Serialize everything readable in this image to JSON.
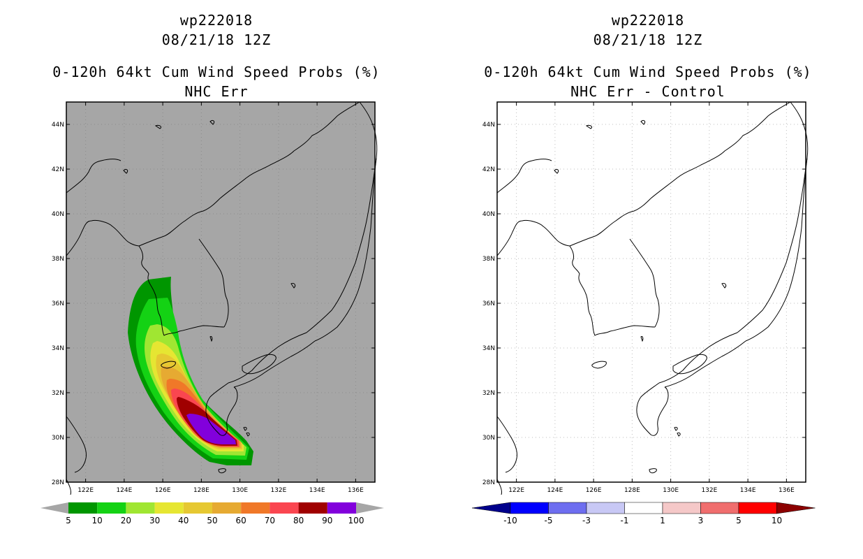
{
  "left_panel": {
    "storm_id": "wp222018",
    "datetime": "08/21/18 12Z",
    "product": "0-120h 64kt Cum Wind Speed Probs (%)",
    "subtitle": "NHC Err",
    "background_color": "#a6a6a6",
    "legend": {
      "labels": [
        "5",
        "10",
        "20",
        "30",
        "40",
        "50",
        "60",
        "70",
        "80",
        "90",
        "100"
      ],
      "colors": [
        "#009600",
        "#14d214",
        "#a0e632",
        "#e6e632",
        "#e6c832",
        "#e6aa32",
        "#f07828",
        "#fa4650",
        "#a00000",
        "#8200dc"
      ]
    }
  },
  "right_panel": {
    "storm_id": "wp222018",
    "datetime": "08/21/18 12Z",
    "product": "0-120h 64kt Cum Wind Speed Probs (%)",
    "subtitle": "NHC Err - Control",
    "background_color": "#ffffff",
    "legend": {
      "labels": [
        "-10",
        "-5",
        "-3",
        "-1",
        "1",
        "3",
        "5",
        "10"
      ],
      "colors": [
        "#00008c",
        "#0000ff",
        "#6e6ef0",
        "#c8c8f5",
        "#ffffff",
        "#f5c8c8",
        "#f06e6e",
        "#ff0000",
        "#8c0000"
      ]
    }
  },
  "axes": {
    "lat_labels": [
      "44N",
      "42N",
      "40N",
      "38N",
      "36N",
      "34N",
      "32N",
      "30N",
      "28N"
    ],
    "lon_labels": [
      "122E",
      "124E",
      "126E",
      "128E",
      "130E",
      "132E",
      "134E",
      "136E"
    ]
  }
}
